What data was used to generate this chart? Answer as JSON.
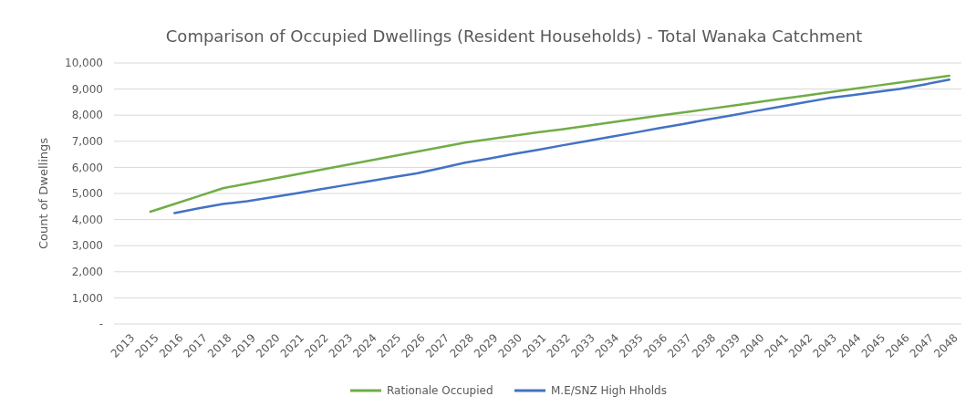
{
  "chart_data": {
    "type": "line",
    "title": "Comparison of Occupied Dwellings (Resident Households) - Total Wanaka Catchment",
    "ylabel": "Count of Dwellings",
    "categories": [
      "2013",
      "2015",
      "2016",
      "2017",
      "2018",
      "2019",
      "2020",
      "2021",
      "2022",
      "2023",
      "2024",
      "2025",
      "2026",
      "2027",
      "2028",
      "2029",
      "2030",
      "2031",
      "2032",
      "2033",
      "2034",
      "2035",
      "2036",
      "2037",
      "2038",
      "2039",
      "2040",
      "2041",
      "2042",
      "2043",
      "2044",
      "2045",
      "2046",
      "2047",
      "2048"
    ],
    "series": [
      {
        "name": "Rationale Occupied",
        "color": "#70ad47",
        "values": [
          null,
          4300,
          4600,
          4900,
          5200,
          5375,
          5550,
          5725,
          5900,
          6075,
          6250,
          6425,
          6600,
          6775,
          6950,
          7080,
          7210,
          7340,
          7460,
          7590,
          7720,
          7850,
          7980,
          8100,
          8230,
          8360,
          8490,
          8620,
          8740,
          8870,
          9000,
          9130,
          9260,
          9380,
          9510
        ]
      },
      {
        "name": "M.E/SNZ High Hholds",
        "color": "#4472c4",
        "values": [
          null,
          null,
          4250,
          4430,
          4600,
          4700,
          4850,
          5000,
          5160,
          5310,
          5460,
          5620,
          5770,
          5970,
          6180,
          6340,
          6510,
          6670,
          6840,
          7000,
          7170,
          7330,
          7500,
          7660,
          7830,
          7990,
          8160,
          8320,
          8490,
          8650,
          8770,
          8890,
          9010,
          9180,
          9360
        ]
      }
    ],
    "ylim": [
      0,
      10000
    ],
    "yticks": [
      {
        "value": 0,
        "label": "-"
      },
      {
        "value": 1000,
        "label": "1,000"
      },
      {
        "value": 2000,
        "label": "2,000"
      },
      {
        "value": 3000,
        "label": "3,000"
      },
      {
        "value": 4000,
        "label": "4,000"
      },
      {
        "value": 5000,
        "label": "5,000"
      },
      {
        "value": 6000,
        "label": "6,000"
      },
      {
        "value": 7000,
        "label": "7,000"
      },
      {
        "value": 8000,
        "label": "8,000"
      },
      {
        "value": 9000,
        "label": "9,000"
      },
      {
        "value": 10000,
        "label": "10,000"
      }
    ],
    "grid": "y",
    "legend": "bottom",
    "marker": "none",
    "line_style": "solid"
  }
}
